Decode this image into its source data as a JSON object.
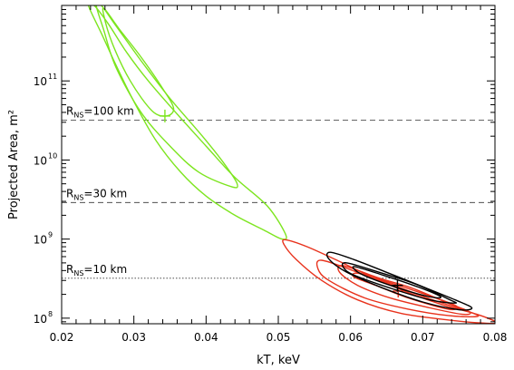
{
  "chart_data": {
    "type": "contour",
    "title": "",
    "xlabel": "kT, keV",
    "ylabel": "Projected Area, m²",
    "xlim": [
      0.02,
      0.08
    ],
    "ylim": [
      85000000.0,
      900000000000.0
    ],
    "yscale": "log",
    "xticks": [
      0.02,
      0.03,
      0.04,
      0.05,
      0.06,
      0.07,
      0.08
    ],
    "xtick_labels": [
      "0.02",
      "0.03",
      "0.04",
      "0.05",
      "0.06",
      "0.07",
      "0.08"
    ],
    "yticks": [
      100000000.0,
      1000000000.0,
      10000000000.0,
      100000000000.0
    ],
    "ytick_labels": [
      {
        "base": "10",
        "exp": "8"
      },
      {
        "base": "10",
        "exp": "9"
      },
      {
        "base": "10",
        "exp": "10"
      },
      {
        "base": "10",
        "exp": "11"
      }
    ],
    "reference_lines": [
      {
        "y": 32000000000.0,
        "style": "dashed",
        "label_main": "R",
        "label_sub": "NS",
        "label_rest": "=100 km"
      },
      {
        "y": 2900000000.0,
        "style": "dashed",
        "label_main": "R",
        "label_sub": "NS",
        "label_rest": "=30 km"
      },
      {
        "y": 320000000.0,
        "style": "dotted",
        "label_main": "R",
        "label_sub": "NS",
        "label_rest": "=10 km"
      }
    ],
    "series": [
      {
        "color": "#7de51f",
        "best_fit": {
          "x": 0.0343,
          "y": 36000000000.0
        },
        "contours": [
          [
            [
              0.0245,
              900000000000.0
            ],
            [
              0.0265,
              520000000000.0
            ],
            [
              0.029,
              230000000000.0
            ],
            [
              0.032,
              100000000000.0
            ],
            [
              0.036,
              38000000000.0
            ],
            [
              0.04,
              15000000000.0
            ],
            [
              0.044,
              6000000000.0
            ],
            [
              0.0485,
              2600000000.0
            ],
            [
              0.051,
              1150000000.0
            ],
            [
              0.0505,
              1000000000.0
            ],
            [
              0.048,
              1300000000.0
            ],
            [
              0.044,
              2000000000.0
            ],
            [
              0.04,
              3500000000.0
            ],
            [
              0.0365,
              7000000000.0
            ],
            [
              0.033,
              18000000000.0
            ],
            [
              0.03,
              55000000000.0
            ],
            [
              0.0275,
              160000000000.0
            ],
            [
              0.0255,
              400000000000.0
            ],
            [
              0.0237,
              900000000000.0
            ]
          ],
          [
            [
              0.0255,
              900000000000.0
            ],
            [
              0.0275,
              500000000000.0
            ],
            [
              0.031,
              180000000000.0
            ],
            [
              0.035,
              60000000000.0
            ],
            [
              0.0395,
              20000000000.0
            ],
            [
              0.0425,
              9000000000.0
            ],
            [
              0.0443,
              5000000000.0
            ],
            [
              0.0435,
              4600000000.0
            ],
            [
              0.039,
              7000000000.0
            ],
            [
              0.035,
              15000000000.0
            ],
            [
              0.031,
              40000000000.0
            ],
            [
              0.0275,
              150000000000.0
            ],
            [
              0.0258,
              450000000000.0
            ],
            [
              0.0248,
              900000000000.0
            ]
          ],
          [
            [
              0.026,
              800000000000.0
            ],
            [
              0.028,
              450000000000.0
            ],
            [
              0.031,
              200000000000.0
            ],
            [
              0.034,
              80000000000.0
            ],
            [
              0.0355,
              45000000000.0
            ],
            [
              0.0345,
              36000000000.0
            ],
            [
              0.0325,
              42000000000.0
            ],
            [
              0.0295,
              100000000000.0
            ],
            [
              0.027,
              300000000000.0
            ],
            [
              0.0258,
              700000000000.0
            ]
          ]
        ]
      },
      {
        "color": "#e8321c",
        "best_fit": {
          "x": 0.0666,
          "y": 220000000.0
        },
        "contours": [
          [
            [
              0.051,
              980000000.0
            ],
            [
              0.054,
              800000000.0
            ],
            [
              0.0585,
              520000000.0
            ],
            [
              0.063,
              330000000.0
            ],
            [
              0.068,
              210000000.0
            ],
            [
              0.073,
              145000000.0
            ],
            [
              0.0775,
              112000000.0
            ],
            [
              0.0802,
              88000000.0
            ],
            [
              0.078,
              87000000.0
            ],
            [
              0.0735,
              95000000.0
            ],
            [
              0.067,
              115000000.0
            ],
            [
              0.061,
              170000000.0
            ],
            [
              0.056,
              300000000.0
            ],
            [
              0.0525,
              550000000.0
            ],
            [
              0.0508,
              850000000.0
            ]
          ],
          [
            [
              0.056,
              540000000.0
            ],
            [
              0.061,
              380000000.0
            ],
            [
              0.066,
              260000000.0
            ],
            [
              0.071,
              175000000.0
            ],
            [
              0.0765,
              120000000.0
            ],
            [
              0.0775,
              105000000.0
            ],
            [
              0.0735,
              108000000.0
            ],
            [
              0.068,
              130000000.0
            ],
            [
              0.062,
              180000000.0
            ],
            [
              0.057,
              300000000.0
            ],
            [
              0.0555,
              420000000.0
            ]
          ],
          [
            [
              0.059,
              460000000.0
            ],
            [
              0.064,
              320000000.0
            ],
            [
              0.0685,
              240000000.0
            ],
            [
              0.0735,
              155000000.0
            ],
            [
              0.0765,
              120000000.0
            ],
            [
              0.0755,
              112000000.0
            ],
            [
              0.071,
              135000000.0
            ],
            [
              0.0655,
              180000000.0
            ],
            [
              0.061,
              260000000.0
            ],
            [
              0.0585,
              380000000.0
            ]
          ],
          [
            [
              0.061,
              370000000.0
            ],
            [
              0.065,
              290000000.0
            ],
            [
              0.069,
              220000000.0
            ],
            [
              0.0745,
              145000000.0
            ],
            [
              0.0735,
              130000000.0
            ],
            [
              0.068,
              180000000.0
            ],
            [
              0.0635,
              260000000.0
            ],
            [
              0.0605,
              330000000.0
            ]
          ]
        ]
      },
      {
        "color": "#000000",
        "best_fit": {
          "x": 0.0665,
          "y": 260000000.0
        },
        "contours": [
          [
            [
              0.0572,
              680000000.0
            ],
            [
              0.0605,
              550000000.0
            ],
            [
              0.065,
              380000000.0
            ],
            [
              0.07,
              250000000.0
            ],
            [
              0.0745,
              170000000.0
            ],
            [
              0.0768,
              135000000.0
            ],
            [
              0.075,
              128000000.0
            ],
            [
              0.07,
              160000000.0
            ],
            [
              0.0645,
              240000000.0
            ],
            [
              0.0595,
              380000000.0
            ],
            [
              0.057,
              560000000.0
            ]
          ],
          [
            [
              0.0595,
              500000000.0
            ],
            [
              0.064,
              380000000.0
            ],
            [
              0.069,
              270000000.0
            ],
            [
              0.0735,
              175000000.0
            ],
            [
              0.0745,
              155000000.0
            ],
            [
              0.071,
              170000000.0
            ],
            [
              0.0655,
              240000000.0
            ],
            [
              0.0605,
              350000000.0
            ],
            [
              0.059,
              440000000.0
            ]
          ],
          [
            [
              0.0605,
              450000000.0
            ],
            [
              0.0645,
              350000000.0
            ],
            [
              0.0695,
              245000000.0
            ],
            [
              0.0725,
              185000000.0
            ],
            [
              0.0705,
              190000000.0
            ],
            [
              0.0655,
              260000000.0
            ],
            [
              0.0615,
              360000000.0
            ]
          ]
        ]
      }
    ],
    "grid": false,
    "legend": "none"
  }
}
